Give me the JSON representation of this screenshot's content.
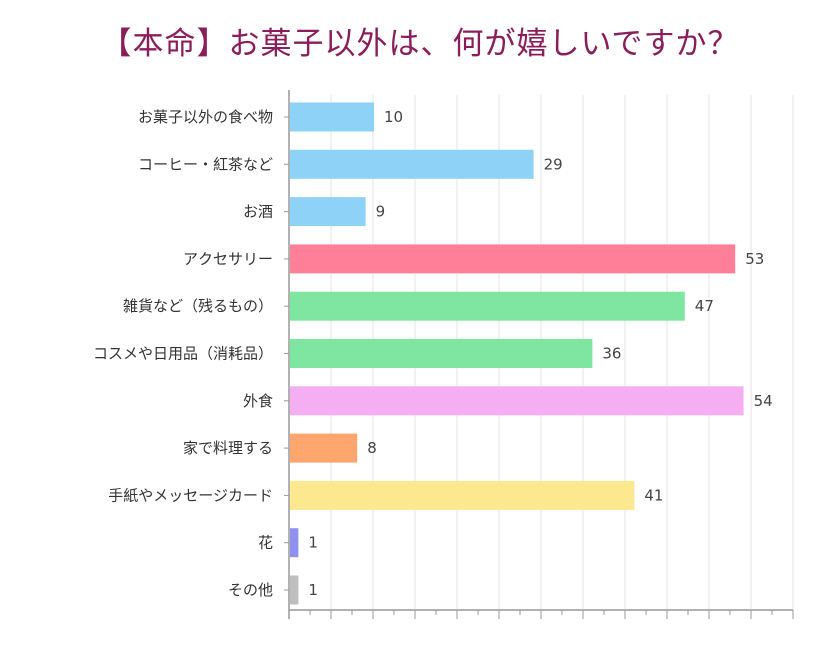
{
  "chart_data": {
    "type": "bar",
    "orientation": "horizontal",
    "title": "【本命】お菓子以外は、何が嬉しいですか？",
    "xlabel": "",
    "ylabel": "",
    "xlim": [
      0,
      60
    ],
    "grid": true,
    "legend": "none",
    "categories": [
      "お菓子以外の食べ物",
      "コーヒー・紅茶など",
      "お酒",
      "アクセサリー",
      "雑貨など（残るもの）",
      "コスメや日用品（消耗品）",
      "外食",
      "家で料理する",
      "手紙やメッセージカード",
      "花",
      "その他"
    ],
    "values": [
      10,
      29,
      9,
      53,
      47,
      36,
      54,
      8,
      41,
      1,
      1
    ],
    "colors": [
      "#8ed3f7",
      "#8ed3f7",
      "#8ed3f7",
      "#ff7f98",
      "#7fe6a1",
      "#7fe6a1",
      "#f5aef2",
      "#ffa56e",
      "#fbe88f",
      "#9090ee",
      "#bfbfbf"
    ]
  }
}
